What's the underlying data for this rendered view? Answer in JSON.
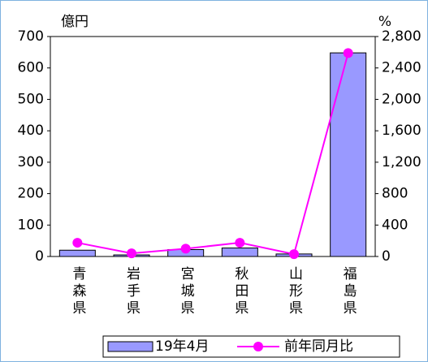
{
  "chart_data": {
    "type": "bar",
    "y_label": "億円",
    "y2_label": "%",
    "categories": [
      "青森県",
      "岩手県",
      "宮城県",
      "秋田県",
      "山形県",
      "福島県"
    ],
    "series": [
      {
        "name": "19年4月",
        "color": "#9999ff",
        "values": [
          20,
          5,
          22,
          27,
          8,
          648
        ]
      },
      {
        "name": "前年同月比",
        "color": "#ff00ff",
        "type": "line",
        "axis": "y2",
        "values": [
          175,
          40,
          100,
          175,
          30,
          2590
        ]
      }
    ],
    "ylim": [
      0,
      700
    ],
    "yticks": [
      0,
      100,
      200,
      300,
      400,
      500,
      600,
      700
    ],
    "y2lim": [
      0,
      2800
    ],
    "y2ticks": [
      0,
      400,
      800,
      {
        "value": 1200,
        "label": "1,200"
      },
      {
        "value": 1600,
        "label": "1,600"
      },
      {
        "value": 2000,
        "label": "2,000"
      },
      {
        "value": 2400,
        "label": "2,400"
      },
      {
        "value": 2800,
        "label": "2,800"
      }
    ]
  }
}
